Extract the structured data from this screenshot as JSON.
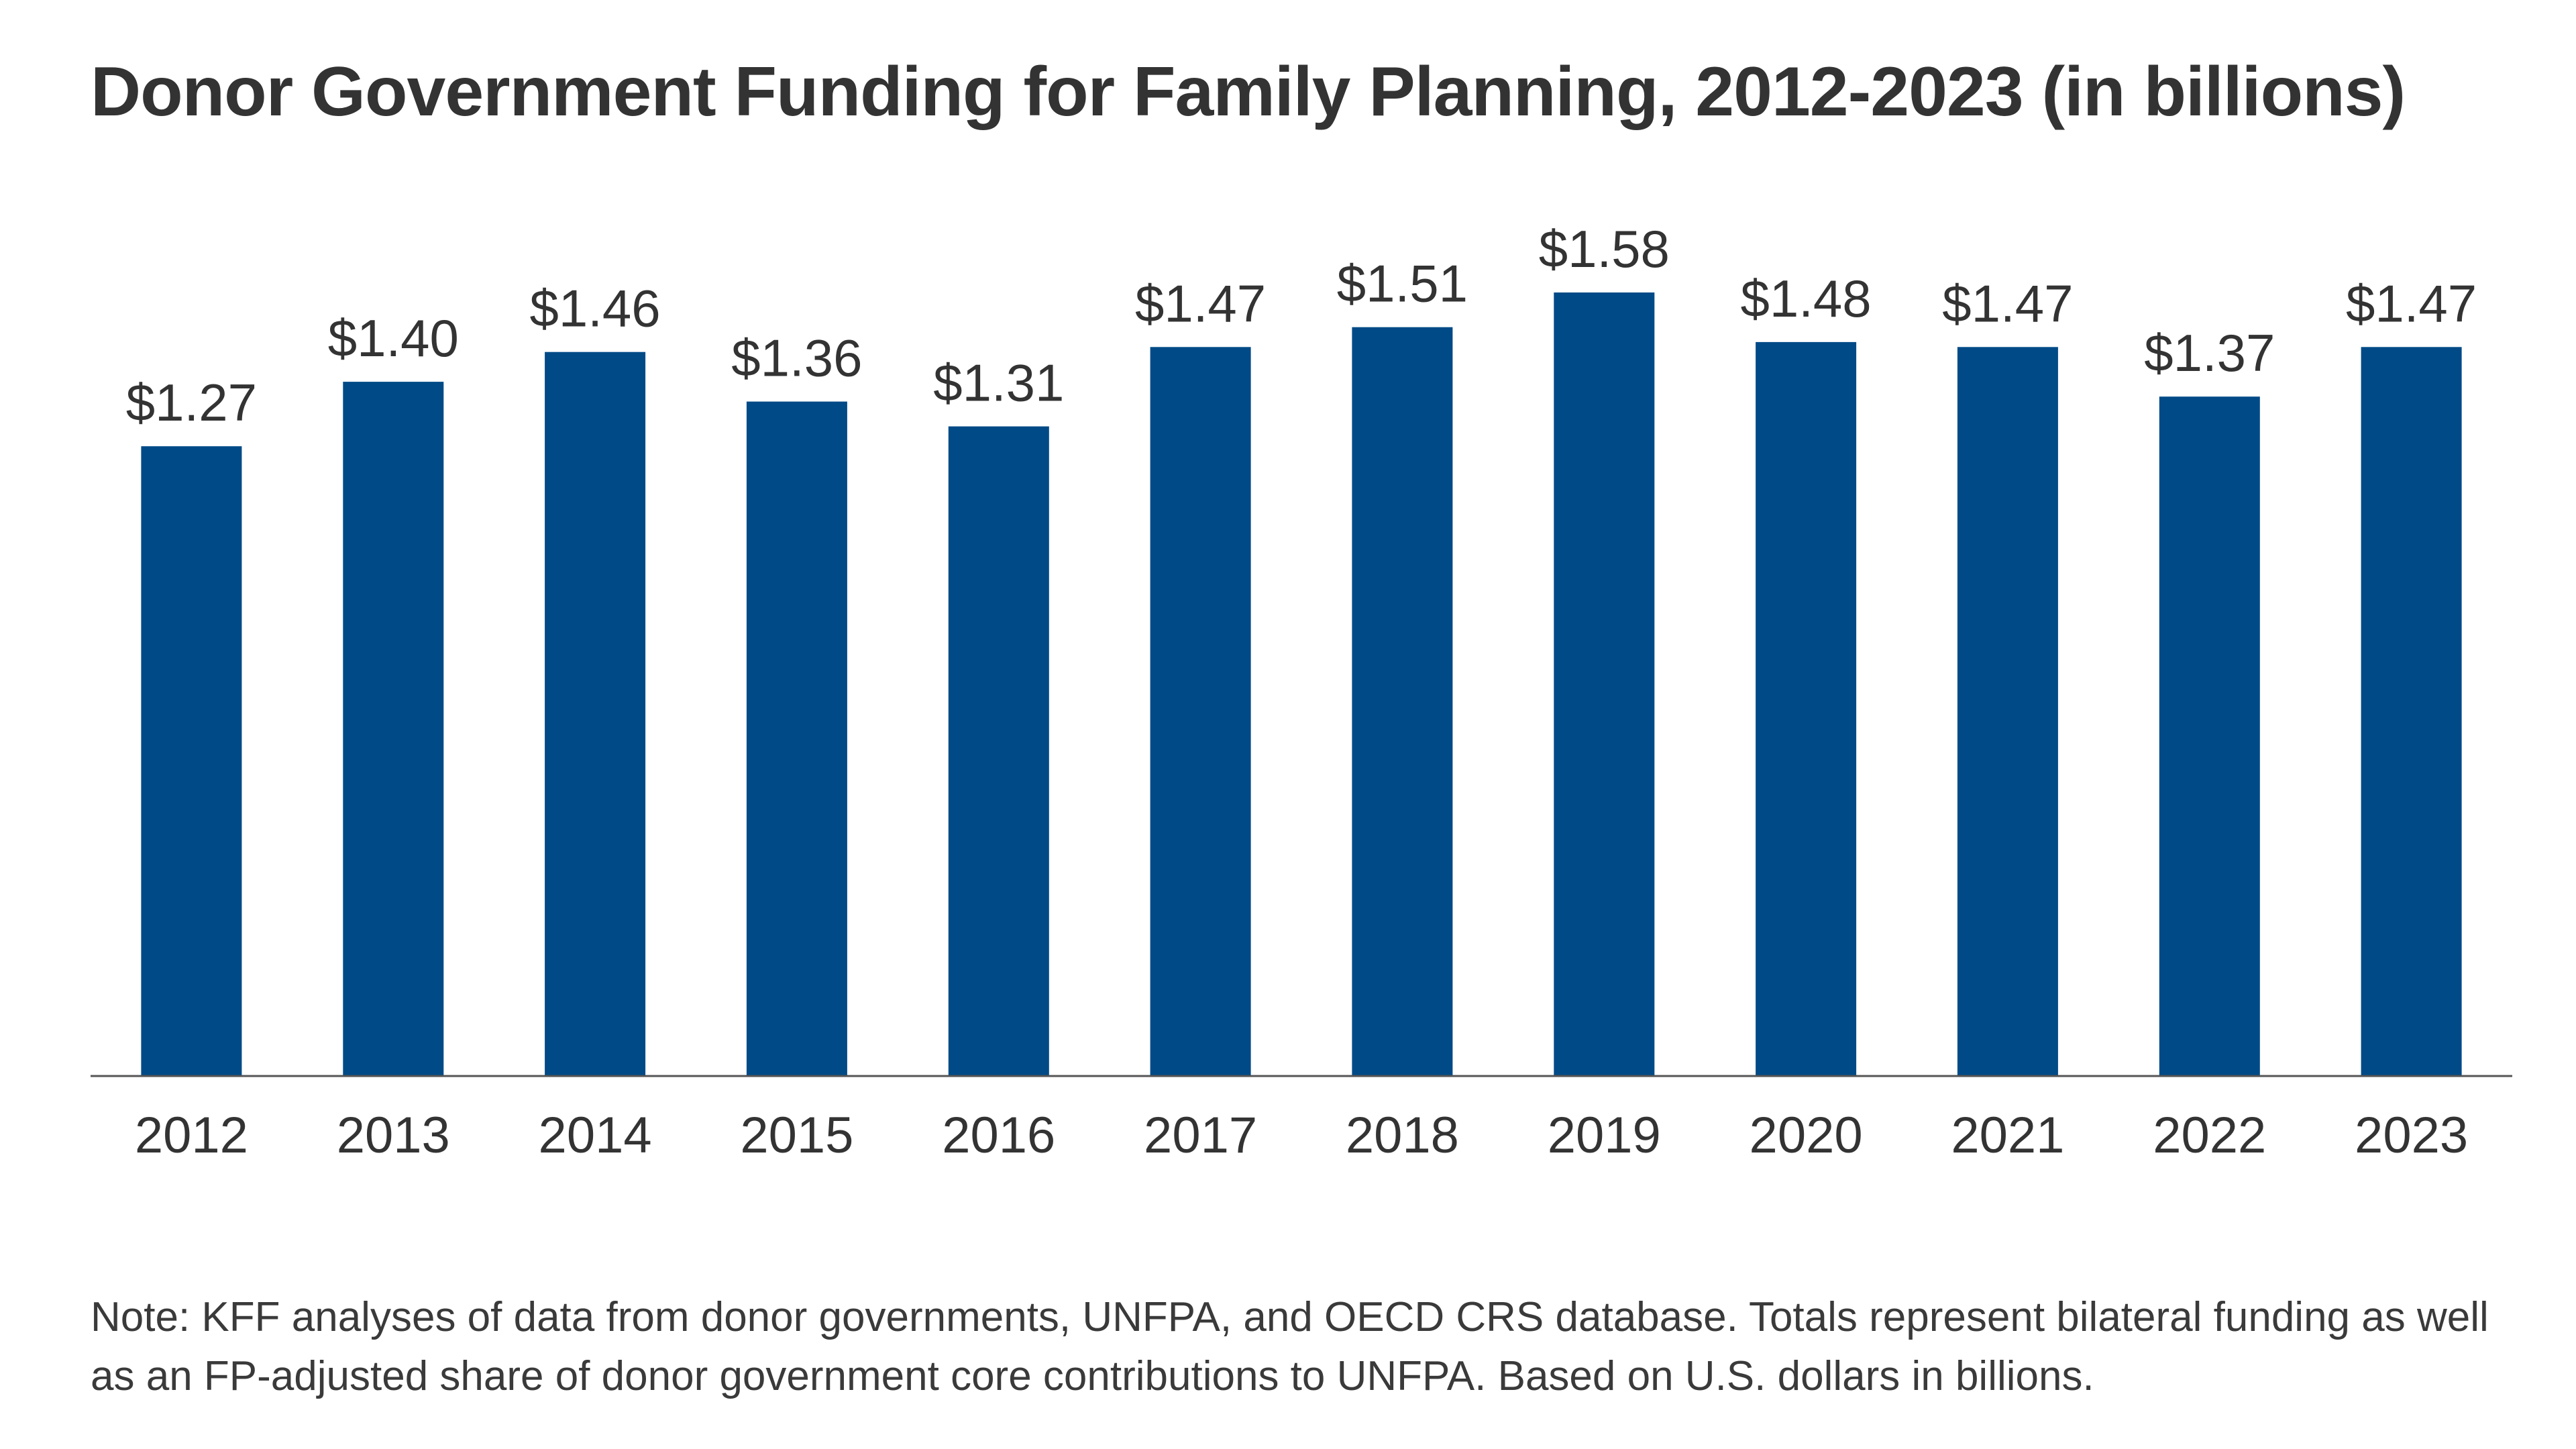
{
  "chart_data": {
    "type": "bar",
    "title": "Donor Government Funding for Family Planning, 2012-2023 (in billions)",
    "categories": [
      "2012",
      "2013",
      "2014",
      "2015",
      "2016",
      "2017",
      "2018",
      "2019",
      "2020",
      "2021",
      "2022",
      "2023"
    ],
    "values": [
      1.27,
      1.4,
      1.46,
      1.36,
      1.31,
      1.47,
      1.51,
      1.58,
      1.48,
      1.47,
      1.37,
      1.47
    ],
    "data_labels": [
      "$1.27",
      "$1.40",
      "$1.46",
      "$1.36",
      "$1.31",
      "$1.47",
      "$1.51",
      "$1.58",
      "$1.48",
      "$1.47",
      "$1.37",
      "$1.47"
    ],
    "xlabel": "",
    "ylabel": "",
    "ylim": [
      0,
      1.58
    ],
    "grid": false,
    "bar_color": "#004a87",
    "axis_color": "#555555",
    "note": "Note: KFF analyses of data from donor governments, UNFPA, and OECD CRS database. Totals represent bilateral funding as well as an FP-adjusted share of donor government core contributions to UNFPA. Based on U.S. dollars in billions."
  }
}
